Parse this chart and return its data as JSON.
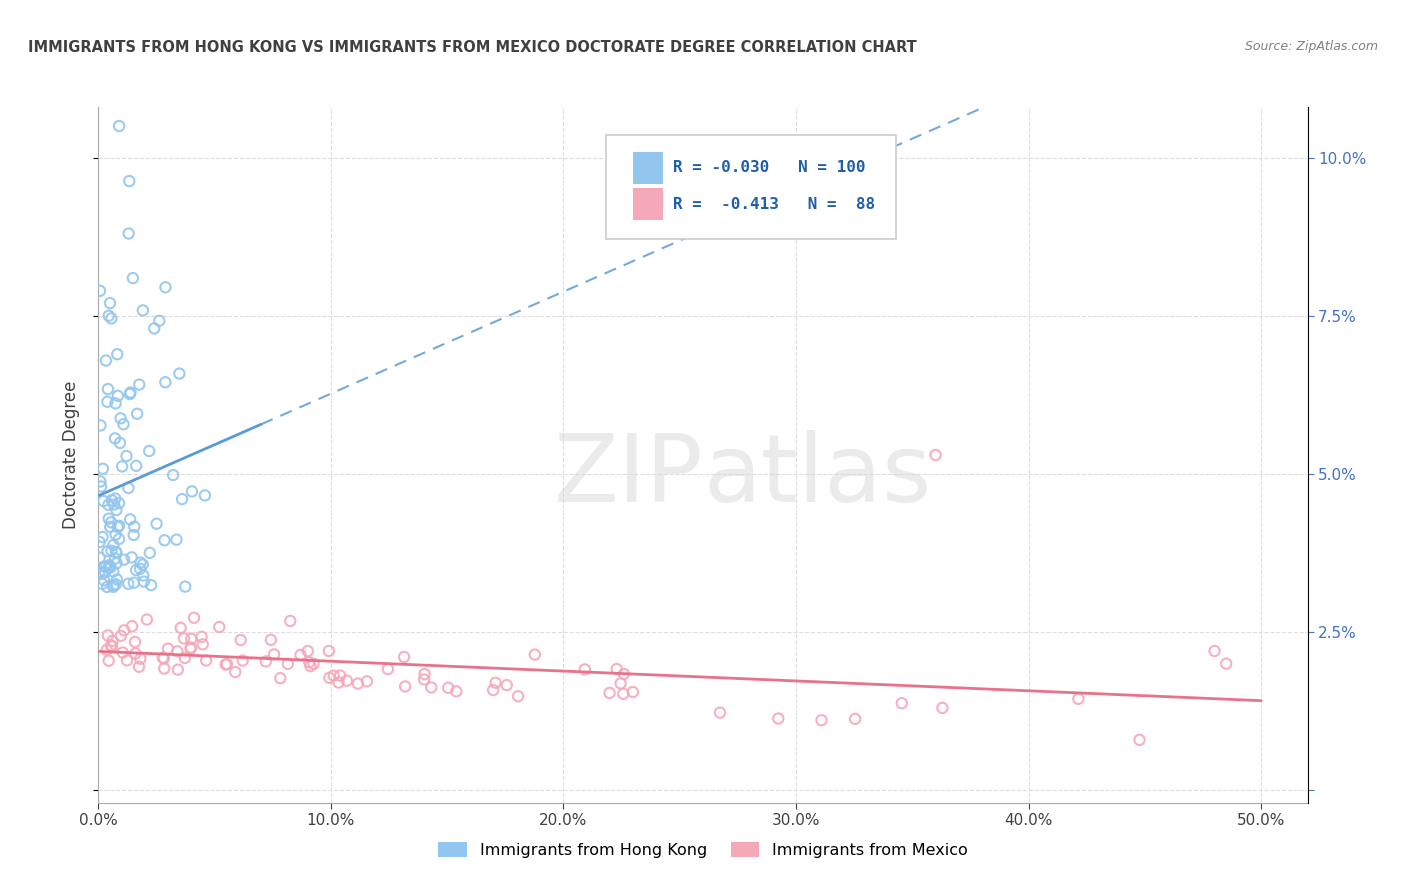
{
  "title": "IMMIGRANTS FROM HONG KONG VS IMMIGRANTS FROM MEXICO DOCTORATE DEGREE CORRELATION CHART",
  "source": "Source: ZipAtlas.com",
  "ylabel": "Doctorate Degree",
  "xlim": [
    0.0,
    0.52
  ],
  "ylim": [
    -0.002,
    0.108
  ],
  "xtick_vals": [
    0.0,
    0.1,
    0.2,
    0.3,
    0.4,
    0.5
  ],
  "xtick_labels": [
    "0.0%",
    "10.0%",
    "20.0%",
    "30.0%",
    "40.0%",
    "50.0%"
  ],
  "ytick_vals": [
    0.0,
    0.025,
    0.05,
    0.075,
    0.1
  ],
  "ytick_labels_right": [
    "",
    "2.5%",
    "5.0%",
    "7.5%",
    "10.0%"
  ],
  "hk_color": "#93C6EE",
  "mx_color": "#F5A8B8",
  "hk_trend_color": "#5B9BD5",
  "mx_trend_color": "#E8728A",
  "hk_R": -0.03,
  "hk_N": 100,
  "mx_R": -0.413,
  "mx_N": 88,
  "watermark_zip": "ZIP",
  "watermark_atlas": "atlas",
  "background_color": "#ffffff",
  "grid_color": "#dddddd",
  "right_tick_color": "#4472C4",
  "title_color": "#404040",
  "source_color": "#808080",
  "legend_text_color": "#1F5FA6"
}
